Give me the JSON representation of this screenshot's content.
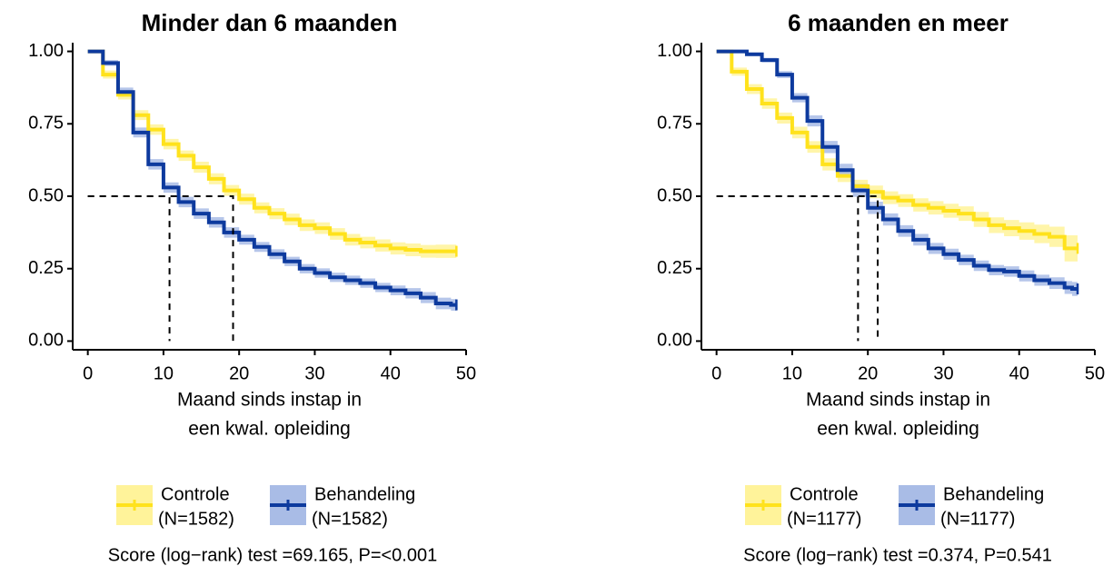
{
  "chart_data": [
    {
      "type": "line",
      "step": true,
      "title": "Minder dan 6 maanden",
      "xlabel": [
        "Maand sinds instap in",
        "een kwal. opleiding"
      ],
      "xlim": [
        -2,
        50
      ],
      "xticks": [
        0,
        10,
        20,
        30,
        40,
        50
      ],
      "ylim": [
        -0.03,
        1.03
      ],
      "yticks": [
        {
          "value": 0,
          "label": "0.00"
        },
        {
          "value": 0.25,
          "label": "0.25"
        },
        {
          "value": 0.5,
          "label": "0.50"
        },
        {
          "value": 0.75,
          "label": "0.75"
        },
        {
          "value": 1,
          "label": "1.00"
        }
      ],
      "x": [
        0,
        2,
        4,
        6,
        8,
        10,
        12,
        14,
        16,
        18,
        20,
        22,
        24,
        26,
        28,
        30,
        32,
        34,
        36,
        38,
        40,
        42,
        44,
        46,
        48
      ],
      "series": [
        {
          "name": "Controle",
          "n_label": "(N=1582)",
          "color": "#FFE21C",
          "band_color": "#FFF39A",
          "values": [
            1.0,
            0.92,
            0.85,
            0.78,
            0.73,
            0.68,
            0.64,
            0.6,
            0.56,
            0.52,
            0.49,
            0.46,
            0.44,
            0.42,
            0.4,
            0.39,
            0.37,
            0.35,
            0.34,
            0.33,
            0.32,
            0.315,
            0.31,
            0.31,
            0.31
          ],
          "ci": [
            0,
            0.014,
            0.016,
            0.017,
            0.018,
            0.018,
            0.018,
            0.019,
            0.019,
            0.019,
            0.019,
            0.019,
            0.019,
            0.02,
            0.02,
            0.02,
            0.02,
            0.02,
            0.02,
            0.021,
            0.021,
            0.022,
            0.022,
            0.023,
            0.023
          ]
        },
        {
          "name": "Behandeling",
          "n_label": "(N=1582)",
          "color": "#0D3A9E",
          "band_color": "#A9BCE6",
          "values": [
            1.0,
            0.96,
            0.86,
            0.72,
            0.61,
            0.53,
            0.48,
            0.44,
            0.41,
            0.375,
            0.35,
            0.325,
            0.3,
            0.275,
            0.25,
            0.235,
            0.22,
            0.21,
            0.2,
            0.185,
            0.175,
            0.165,
            0.15,
            0.13,
            0.125
          ],
          "ci": [
            0,
            0.01,
            0.015,
            0.017,
            0.018,
            0.018,
            0.018,
            0.018,
            0.018,
            0.018,
            0.017,
            0.017,
            0.017,
            0.016,
            0.016,
            0.016,
            0.016,
            0.016,
            0.016,
            0.016,
            0.017,
            0.018,
            0.019,
            0.02,
            0.02
          ]
        }
      ],
      "medians": [
        10.8,
        19.2
      ],
      "median_level": 0.5,
      "footnote": "Score (log−rank) test =69.165, P=<0.001"
    },
    {
      "type": "line",
      "step": true,
      "title": "6 maanden en meer",
      "xlabel": [
        "Maand sinds instap in",
        "een kwal. opleiding"
      ],
      "xlim": [
        -2,
        50
      ],
      "xticks": [
        0,
        10,
        20,
        30,
        40,
        50
      ],
      "ylim": [
        -0.03,
        1.03
      ],
      "yticks": [
        {
          "value": 0,
          "label": "0.00"
        },
        {
          "value": 0.25,
          "label": "0.25"
        },
        {
          "value": 0.5,
          "label": "0.50"
        },
        {
          "value": 0.75,
          "label": "0.75"
        },
        {
          "value": 1,
          "label": "1.00"
        }
      ],
      "x": [
        0,
        2,
        4,
        6,
        8,
        10,
        12,
        14,
        16,
        18,
        20,
        22,
        24,
        26,
        28,
        30,
        32,
        34,
        36,
        38,
        40,
        42,
        44,
        46,
        47
      ],
      "series": [
        {
          "name": "Controle",
          "n_label": "(N=1177)",
          "color": "#FFE21C",
          "band_color": "#FFF39A",
          "values": [
            1.0,
            0.93,
            0.87,
            0.82,
            0.77,
            0.72,
            0.67,
            0.61,
            0.57,
            0.535,
            0.515,
            0.495,
            0.485,
            0.47,
            0.46,
            0.45,
            0.44,
            0.42,
            0.4,
            0.39,
            0.38,
            0.37,
            0.36,
            0.32,
            0.32
          ],
          "ci": [
            0,
            0.014,
            0.017,
            0.018,
            0.019,
            0.02,
            0.02,
            0.021,
            0.021,
            0.022,
            0.022,
            0.022,
            0.022,
            0.023,
            0.023,
            0.024,
            0.025,
            0.026,
            0.027,
            0.028,
            0.03,
            0.032,
            0.035,
            0.045,
            0.045
          ]
        },
        {
          "name": "Behandeling",
          "n_label": "(N=1177)",
          "color": "#0D3A9E",
          "band_color": "#A9BCE6",
          "values": [
            1.0,
            1.0,
            0.99,
            0.97,
            0.92,
            0.84,
            0.76,
            0.67,
            0.59,
            0.52,
            0.46,
            0.42,
            0.38,
            0.35,
            0.32,
            0.3,
            0.28,
            0.26,
            0.245,
            0.24,
            0.225,
            0.21,
            0.2,
            0.185,
            0.18
          ],
          "ci": [
            0,
            0.004,
            0.006,
            0.008,
            0.012,
            0.016,
            0.019,
            0.021,
            0.022,
            0.022,
            0.021,
            0.021,
            0.02,
            0.02,
            0.019,
            0.019,
            0.018,
            0.018,
            0.018,
            0.018,
            0.019,
            0.019,
            0.02,
            0.022,
            0.024
          ]
        }
      ],
      "medians": [
        18.7,
        21.3
      ],
      "median_level": 0.5,
      "footnote": "Score (log−rank) test =0.374, P=0.541"
    }
  ]
}
